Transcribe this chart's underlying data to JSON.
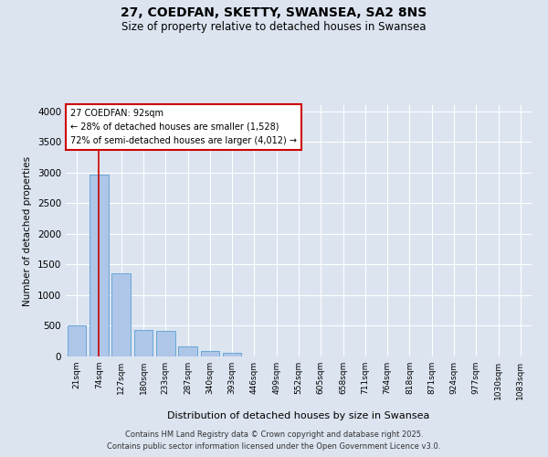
{
  "title_line1": "27, COEDFAN, SKETTY, SWANSEA, SA2 8NS",
  "title_line2": "Size of property relative to detached houses in Swansea",
  "xlabel": "Distribution of detached houses by size in Swansea",
  "ylabel": "Number of detached properties",
  "footer_line1": "Contains HM Land Registry data © Crown copyright and database right 2025.",
  "footer_line2": "Contains public sector information licensed under the Open Government Licence v3.0.",
  "bar_labels": [
    "21sqm",
    "74sqm",
    "127sqm",
    "180sqm",
    "233sqm",
    "287sqm",
    "340sqm",
    "393sqm",
    "446sqm",
    "499sqm",
    "552sqm",
    "605sqm",
    "658sqm",
    "711sqm",
    "764sqm",
    "818sqm",
    "871sqm",
    "924sqm",
    "977sqm",
    "1030sqm",
    "1083sqm"
  ],
  "bar_values": [
    510,
    2970,
    1360,
    430,
    420,
    160,
    90,
    55,
    0,
    0,
    0,
    0,
    0,
    0,
    0,
    0,
    0,
    0,
    0,
    0,
    0
  ],
  "bar_color": "#aec6e8",
  "bar_edge_color": "#5a9fd4",
  "background_color": "#dce4f0",
  "plot_bg_color": "#dce4f0",
  "grid_color": "#ffffff",
  "annotation_text": "27 COEDFAN: 92sqm\n← 28% of detached houses are smaller (1,528)\n72% of semi-detached houses are larger (4,012) →",
  "annotation_box_color": "#ffffff",
  "annotation_box_edge": "#cc0000",
  "vline_x": 1,
  "vline_color": "#cc0000",
  "ylim": [
    0,
    4100
  ],
  "yticks": [
    0,
    500,
    1000,
    1500,
    2000,
    2500,
    3000,
    3500,
    4000
  ]
}
